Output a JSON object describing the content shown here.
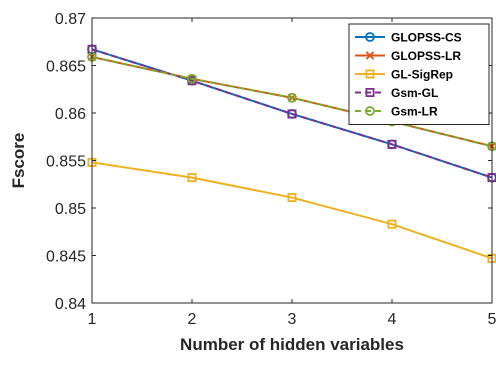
{
  "chart_data": {
    "type": "line",
    "title": "",
    "xlabel": "Number of hidden variables",
    "ylabel": "Fscore",
    "x": [
      1,
      2,
      3,
      4,
      5
    ],
    "x_ticks": [
      "1",
      "2",
      "3",
      "4",
      "5"
    ],
    "xlim": [
      1,
      5
    ],
    "ylim": [
      0.84,
      0.87
    ],
    "y_ticks": [
      "0.84",
      "0.845",
      "0.85",
      "0.855",
      "0.86",
      "0.865",
      "0.87"
    ],
    "grid": false,
    "legend_position": "top-right",
    "series": [
      {
        "name": "GLOPSS-CS",
        "color": "#0072BD",
        "marker": "circle",
        "line": "solid",
        "values": [
          0.8667,
          0.8634,
          0.8599,
          0.8567,
          0.8532
        ]
      },
      {
        "name": "GLOPSS-LR",
        "color": "#D95319",
        "marker": "x",
        "line": "solid",
        "values": [
          0.8659,
          0.8636,
          0.8616,
          0.8591,
          0.8565
        ]
      },
      {
        "name": "GL-SigRep",
        "color": "#EDB120",
        "marker": "square",
        "line": "solid",
        "values": [
          0.8548,
          0.8532,
          0.8511,
          0.8483,
          0.8447
        ]
      },
      {
        "name": "Gsm-GL",
        "color": "#7E2F8E",
        "marker": "square",
        "line": "dashed",
        "values": [
          0.8667,
          0.8634,
          0.8599,
          0.8567,
          0.8532
        ]
      },
      {
        "name": "Gsm-LR",
        "color": "#77AC30",
        "marker": "circle",
        "line": "dashed",
        "values": [
          0.8659,
          0.8636,
          0.8616,
          0.8591,
          0.8565
        ]
      }
    ]
  }
}
